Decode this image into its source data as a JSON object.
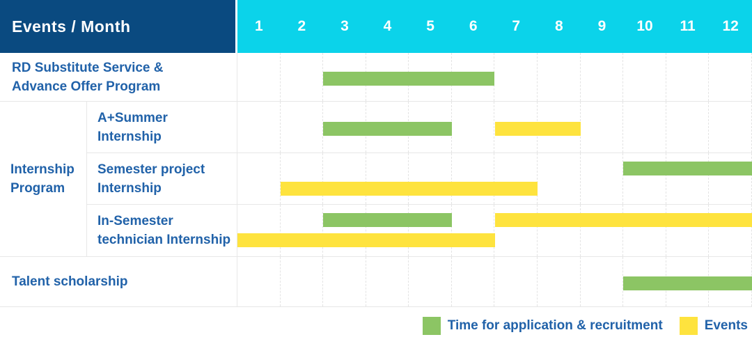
{
  "header": {
    "title": "Events / Month",
    "months": [
      "1",
      "2",
      "3",
      "4",
      "5",
      "6",
      "7",
      "8",
      "9",
      "10",
      "11",
      "12"
    ]
  },
  "colors": {
    "header_bg": "#0a4a80",
    "months_bg": "#0bd3ea",
    "label_text": "#2162a9",
    "green": "#8cc564",
    "yellow": "#fee33e"
  },
  "rows": {
    "rd": {
      "line1": "RD Substitute Service &",
      "line2": "Advance Offer Program",
      "bars": [
        {
          "color": "green",
          "start": 3,
          "end": 6,
          "track": "single"
        }
      ]
    },
    "group": {
      "line1": "Internship",
      "line2": "Program"
    },
    "a_summer": {
      "line1": "A+Summer",
      "line2": "Internship",
      "bars": [
        {
          "color": "green",
          "start": 3,
          "end": 5,
          "track": "single"
        },
        {
          "color": "yellow",
          "start": 7,
          "end": 8,
          "track": "single"
        }
      ]
    },
    "semester_project": {
      "line1": "Semester project",
      "line2": "Internship",
      "bars": [
        {
          "color": "green",
          "start": 10,
          "end": 12,
          "track": "top"
        },
        {
          "color": "yellow",
          "start": 2,
          "end": 7,
          "track": "bottom"
        }
      ]
    },
    "in_semester": {
      "line1": "In-Semester",
      "line2": "technician Internship",
      "bars": [
        {
          "color": "green",
          "start": 3,
          "end": 5,
          "track": "top"
        },
        {
          "color": "yellow",
          "start": 7,
          "end": 12,
          "track": "top"
        },
        {
          "color": "yellow",
          "start": 1,
          "end": 6,
          "track": "bottom"
        }
      ]
    },
    "talent": {
      "line1": "Talent scholarship",
      "bars": [
        {
          "color": "green",
          "start": 10,
          "end": 12,
          "track": "single"
        }
      ]
    }
  },
  "legend": [
    {
      "color": "green",
      "label": "Time for application & recruitment"
    },
    {
      "color": "yellow",
      "label": "Events"
    }
  ],
  "chart_data": {
    "type": "bar",
    "subtype": "gantt",
    "title": "Events / Month",
    "xlabel": "Month",
    "x_ticks": [
      1,
      2,
      3,
      4,
      5,
      6,
      7,
      8,
      9,
      10,
      11,
      12
    ],
    "xlim": [
      1,
      12
    ],
    "grid": true,
    "legend_position": "bottom-right",
    "series_meaning": {
      "green": "Time for application & recruitment",
      "yellow": "Events"
    },
    "tasks": [
      {
        "group": null,
        "name": "RD Substitute Service & Advance Offer Program",
        "bars": [
          {
            "category": "Time for application & recruitment",
            "start_month": 3,
            "end_month": 6
          }
        ]
      },
      {
        "group": "Internship Program",
        "name": "A+Summer Internship",
        "bars": [
          {
            "category": "Time for application & recruitment",
            "start_month": 3,
            "end_month": 5
          },
          {
            "category": "Events",
            "start_month": 7,
            "end_month": 8
          }
        ]
      },
      {
        "group": "Internship Program",
        "name": "Semester project Internship",
        "bars": [
          {
            "category": "Time for application & recruitment",
            "start_month": 10,
            "end_month": 12
          },
          {
            "category": "Events",
            "start_month": 2,
            "end_month": 7
          }
        ]
      },
      {
        "group": "Internship Program",
        "name": "In-Semester technician Internship",
        "bars": [
          {
            "category": "Time for application & recruitment",
            "start_month": 3,
            "end_month": 5
          },
          {
            "category": "Events",
            "start_month": 7,
            "end_month": 12
          },
          {
            "category": "Events",
            "start_month": 1,
            "end_month": 6
          }
        ]
      },
      {
        "group": null,
        "name": "Talent scholarship",
        "bars": [
          {
            "category": "Time for application & recruitment",
            "start_month": 10,
            "end_month": 12
          }
        ]
      }
    ]
  }
}
